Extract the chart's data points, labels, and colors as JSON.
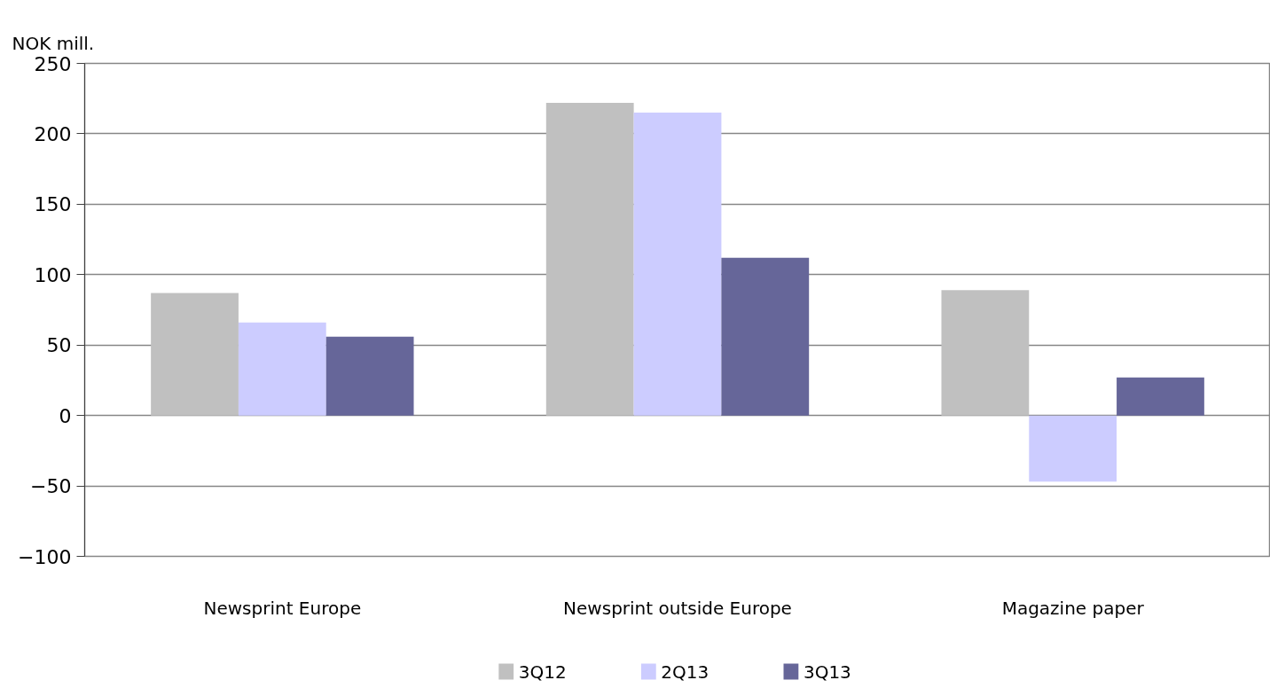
{
  "chart_data": {
    "type": "bar",
    "ylabel": "NOK mill.",
    "categories": [
      "Newsprint Europe",
      "Newsprint outside Europe",
      "Magazine paper"
    ],
    "series": [
      {
        "name": "3Q12",
        "color": "#c0c0c0",
        "values": [
          87,
          222,
          89
        ]
      },
      {
        "name": "2Q13",
        "color": "#ccccff",
        "values": [
          66,
          215,
          -47
        ]
      },
      {
        "name": "3Q13",
        "color": "#666699",
        "values": [
          56,
          112,
          27
        ]
      }
    ],
    "ylim": [
      -100,
      250
    ],
    "yticks": [
      -100,
      -50,
      0,
      50,
      100,
      150,
      200,
      250
    ],
    "grid": "y",
    "legend": "bottom"
  }
}
